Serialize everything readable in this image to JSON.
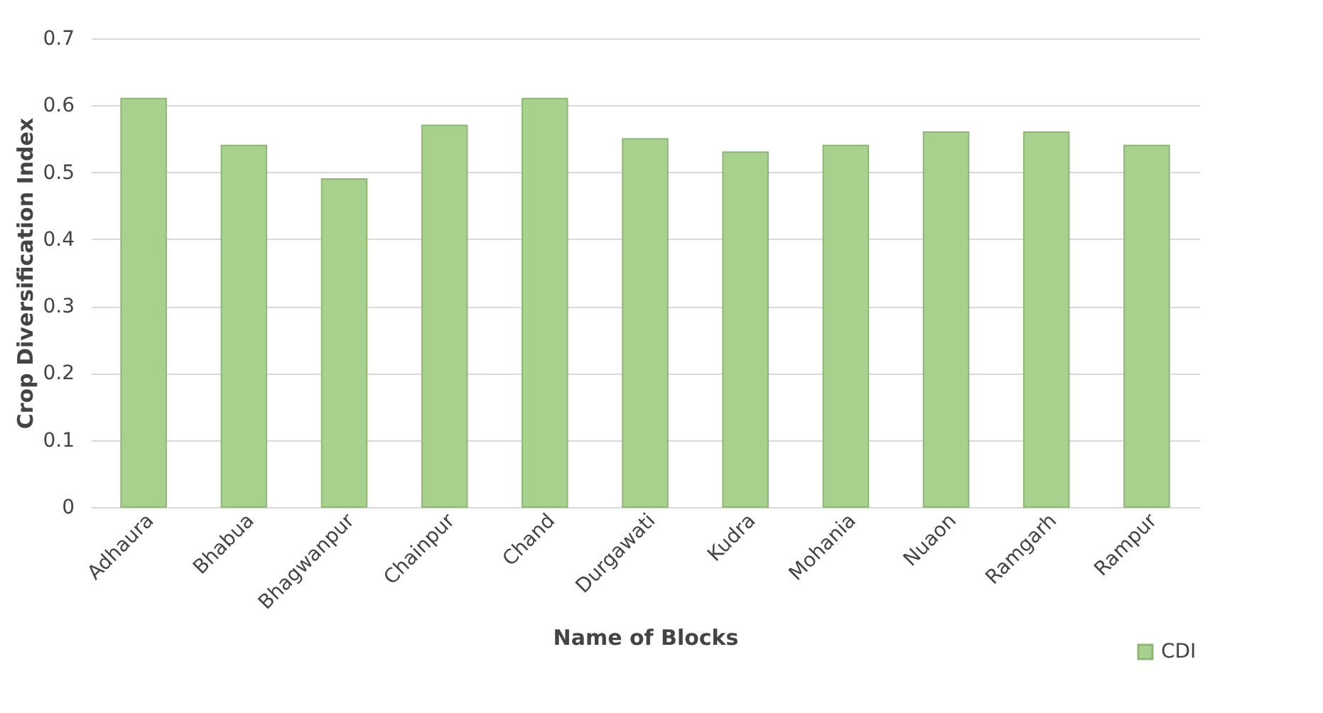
{
  "chart_data": {
    "type": "bar",
    "xlabel": "Name of Blocks",
    "ylabel": "Crop Diversification Index",
    "categories": [
      "Adhaura",
      "Bhabua",
      "Bhagwanpur",
      "Chainpur",
      "Chand",
      "Durgawati",
      "Kudra",
      "Mohania",
      "Nuaon",
      "Ramgarh",
      "Rampur"
    ],
    "series": [
      {
        "name": "CDI",
        "color": "#a9d18e",
        "values": [
          0.61,
          0.54,
          0.49,
          0.57,
          0.61,
          0.55,
          0.53,
          0.54,
          0.56,
          0.56,
          0.54
        ]
      }
    ],
    "ylim": [
      0,
      0.7
    ],
    "yticks": [
      {
        "value": 0,
        "label": "0"
      },
      {
        "value": 0.1,
        "label": "0.1"
      },
      {
        "value": 0.2,
        "label": "0.2"
      },
      {
        "value": 0.3,
        "label": "0.3"
      },
      {
        "value": 0.4,
        "label": "0.4"
      },
      {
        "value": 0.5,
        "label": "0.5"
      },
      {
        "value": 0.6,
        "label": "0.6"
      },
      {
        "value": 0.7,
        "label": "0.7"
      }
    ],
    "grid": "y",
    "legend": "bottom right"
  }
}
